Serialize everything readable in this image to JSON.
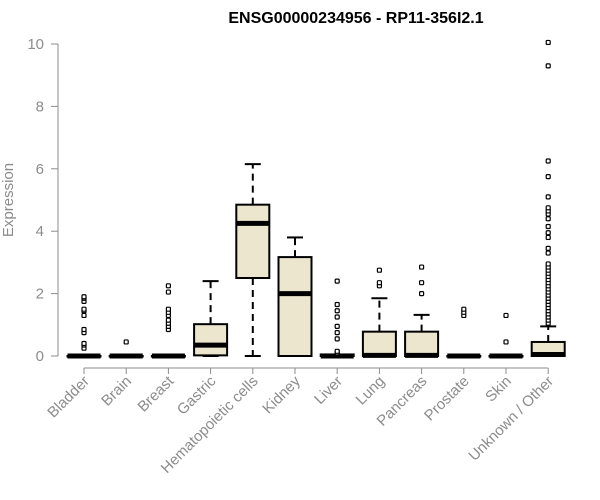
{
  "chart_data": {
    "type": "boxplot",
    "title": "ENSG00000234956 - RP11-356I2.1",
    "xlabel": "",
    "ylabel": "Expression",
    "ylim": [
      0,
      10
    ],
    "yticks": [
      0,
      2,
      4,
      6,
      8,
      10
    ],
    "grid": false,
    "box_fill": "#ede6cf",
    "outline_color": "#000000",
    "categories": [
      "Bladder",
      "Brain",
      "Breast",
      "Gastric",
      "Hematopoietic cells",
      "Kidney",
      "Liver",
      "Lung",
      "Pancreas",
      "Prostate",
      "Skin",
      "Unknown / Other"
    ],
    "boxes": [
      {
        "min": 0,
        "q1": 0,
        "median": 0,
        "q3": 0,
        "max": 0,
        "outliers": [
          0.25,
          0.35,
          0.4,
          0.75,
          0.85,
          1.3,
          1.45,
          1.5,
          1.75,
          1.85,
          1.9
        ]
      },
      {
        "min": 0,
        "q1": 0,
        "median": 0,
        "q3": 0,
        "max": 0,
        "outliers": [
          0.45
        ]
      },
      {
        "min": 0,
        "q1": 0,
        "median": 0,
        "q3": 0,
        "max": 0,
        "outliers": [
          0.85,
          0.95,
          1.05,
          1.15,
          1.3,
          1.4,
          1.5,
          2.05,
          2.25
        ]
      },
      {
        "min": 0,
        "q1": 0.02,
        "median": 0.35,
        "q3": 1.02,
        "max": 2.4,
        "outliers": []
      },
      {
        "min": 0,
        "q1": 2.5,
        "median": 4.25,
        "q3": 4.85,
        "max": 6.15,
        "outliers": []
      },
      {
        "min": 0,
        "q1": 0,
        "median": 2.0,
        "q3": 3.17,
        "max": 3.8,
        "outliers": []
      },
      {
        "min": 0,
        "q1": 0,
        "median": 0,
        "q3": 0.05,
        "max": 0.05,
        "outliers": [
          0.1,
          0.15,
          0.55,
          0.75,
          0.95,
          1.25,
          1.45,
          1.65,
          2.4
        ]
      },
      {
        "min": 0,
        "q1": 0,
        "median": 0.02,
        "q3": 0.78,
        "max": 1.85,
        "outliers": [
          2.25,
          2.35,
          2.75
        ]
      },
      {
        "min": 0,
        "q1": 0,
        "median": 0.02,
        "q3": 0.78,
        "max": 1.32,
        "outliers": [
          2.0,
          2.35,
          2.85
        ]
      },
      {
        "min": 0,
        "q1": 0,
        "median": 0,
        "q3": 0,
        "max": 0,
        "outliers": [
          1.3,
          1.4,
          1.5
        ]
      },
      {
        "min": 0,
        "q1": 0,
        "median": 0,
        "q3": 0,
        "max": 0,
        "outliers": [
          0.45,
          1.3
        ]
      },
      {
        "min": 0,
        "q1": 0,
        "median": 0.05,
        "q3": 0.45,
        "max": 0.95,
        "outliers": [
          1.05,
          1.15,
          1.25,
          1.35,
          1.45,
          1.55,
          1.65,
          1.75,
          1.85,
          1.95,
          2.05,
          2.15,
          2.25,
          2.35,
          2.45,
          2.55,
          2.65,
          2.75,
          2.85,
          2.95,
          3.3,
          3.45,
          3.8,
          3.95,
          4.15,
          4.4,
          4.55,
          4.65,
          4.75,
          5.1,
          5.75,
          6.25,
          9.3,
          10.05
        ]
      }
    ]
  }
}
